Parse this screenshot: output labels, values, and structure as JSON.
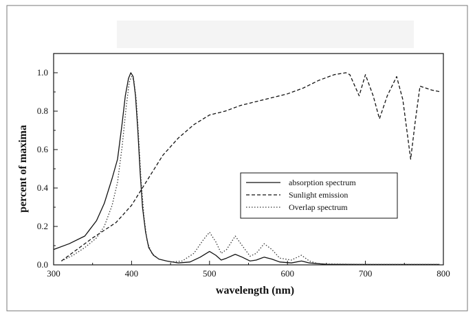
{
  "chart_data": {
    "type": "line",
    "title": "",
    "xlabel": "wavelength (nm)",
    "ylabel": "percent of maxima",
    "xlim": [
      300,
      800
    ],
    "ylim": [
      0.0,
      1.1
    ],
    "x_ticks": [
      300,
      400,
      500,
      600,
      700,
      800
    ],
    "y_ticks": [
      0.0,
      0.2,
      0.4,
      0.6,
      0.8,
      1.0
    ],
    "x_tick_labels": [
      "300",
      "400",
      "500",
      "600",
      "700",
      "800"
    ],
    "y_tick_labels": [
      "0.0",
      "0.2",
      "0.4",
      "0.6",
      "0.8",
      "1.0"
    ],
    "grid": false,
    "legend_position": "center-right",
    "series": [
      {
        "name": "absorption spectrum",
        "style": "solid",
        "color": "#111111",
        "points": [
          [
            300,
            0.08
          ],
          [
            320,
            0.11
          ],
          [
            340,
            0.15
          ],
          [
            355,
            0.23
          ],
          [
            365,
            0.32
          ],
          [
            375,
            0.45
          ],
          [
            382,
            0.55
          ],
          [
            388,
            0.74
          ],
          [
            392,
            0.88
          ],
          [
            396,
            0.97
          ],
          [
            399,
            1.0
          ],
          [
            402,
            0.98
          ],
          [
            405,
            0.88
          ],
          [
            408,
            0.7
          ],
          [
            411,
            0.48
          ],
          [
            414,
            0.3
          ],
          [
            418,
            0.17
          ],
          [
            422,
            0.09
          ],
          [
            428,
            0.05
          ],
          [
            435,
            0.03
          ],
          [
            445,
            0.02
          ],
          [
            460,
            0.01
          ],
          [
            475,
            0.015
          ],
          [
            488,
            0.04
          ],
          [
            500,
            0.07
          ],
          [
            508,
            0.05
          ],
          [
            515,
            0.025
          ],
          [
            522,
            0.035
          ],
          [
            533,
            0.055
          ],
          [
            542,
            0.04
          ],
          [
            552,
            0.02
          ],
          [
            560,
            0.025
          ],
          [
            570,
            0.04
          ],
          [
            580,
            0.03
          ],
          [
            590,
            0.015
          ],
          [
            605,
            0.01
          ],
          [
            618,
            0.02
          ],
          [
            628,
            0.01
          ],
          [
            650,
            0.003
          ],
          [
            700,
            0.002
          ],
          [
            795,
            0.002
          ]
        ]
      },
      {
        "name": "Sunlight emission",
        "style": "dashed",
        "color": "#111111",
        "points": [
          [
            310,
            0.02
          ],
          [
            330,
            0.08
          ],
          [
            350,
            0.14
          ],
          [
            380,
            0.22
          ],
          [
            400,
            0.31
          ],
          [
            420,
            0.44
          ],
          [
            440,
            0.57
          ],
          [
            460,
            0.66
          ],
          [
            480,
            0.73
          ],
          [
            500,
            0.78
          ],
          [
            520,
            0.8
          ],
          [
            540,
            0.83
          ],
          [
            560,
            0.85
          ],
          [
            580,
            0.87
          ],
          [
            600,
            0.89
          ],
          [
            620,
            0.92
          ],
          [
            640,
            0.96
          ],
          [
            660,
            0.99
          ],
          [
            675,
            1.0
          ],
          [
            680,
            0.99
          ],
          [
            692,
            0.88
          ],
          [
            700,
            0.99
          ],
          [
            710,
            0.88
          ],
          [
            718,
            0.76
          ],
          [
            728,
            0.88
          ],
          [
            740,
            0.98
          ],
          [
            748,
            0.86
          ],
          [
            758,
            0.55
          ],
          [
            764,
            0.75
          ],
          [
            770,
            0.93
          ],
          [
            785,
            0.91
          ],
          [
            797,
            0.9
          ]
        ]
      },
      {
        "name": "Overlap spectrum",
        "style": "dotted",
        "color": "#333333",
        "points": [
          [
            310,
            0.02
          ],
          [
            325,
            0.05
          ],
          [
            340,
            0.09
          ],
          [
            355,
            0.14
          ],
          [
            365,
            0.2
          ],
          [
            375,
            0.31
          ],
          [
            382,
            0.43
          ],
          [
            388,
            0.62
          ],
          [
            393,
            0.82
          ],
          [
            397,
            0.95
          ],
          [
            400,
            0.98
          ],
          [
            403,
            0.96
          ],
          [
            406,
            0.86
          ],
          [
            409,
            0.67
          ],
          [
            412,
            0.45
          ],
          [
            416,
            0.25
          ],
          [
            420,
            0.12
          ],
          [
            426,
            0.06
          ],
          [
            435,
            0.03
          ],
          [
            450,
            0.015
          ],
          [
            465,
            0.02
          ],
          [
            480,
            0.06
          ],
          [
            492,
            0.13
          ],
          [
            500,
            0.17
          ],
          [
            508,
            0.12
          ],
          [
            515,
            0.06
          ],
          [
            522,
            0.08
          ],
          [
            533,
            0.15
          ],
          [
            542,
            0.1
          ],
          [
            552,
            0.045
          ],
          [
            560,
            0.06
          ],
          [
            570,
            0.11
          ],
          [
            580,
            0.08
          ],
          [
            590,
            0.035
          ],
          [
            605,
            0.025
          ],
          [
            618,
            0.05
          ],
          [
            628,
            0.02
          ],
          [
            640,
            0.005
          ],
          [
            700,
            0.002
          ],
          [
            795,
            0.002
          ]
        ]
      }
    ]
  }
}
